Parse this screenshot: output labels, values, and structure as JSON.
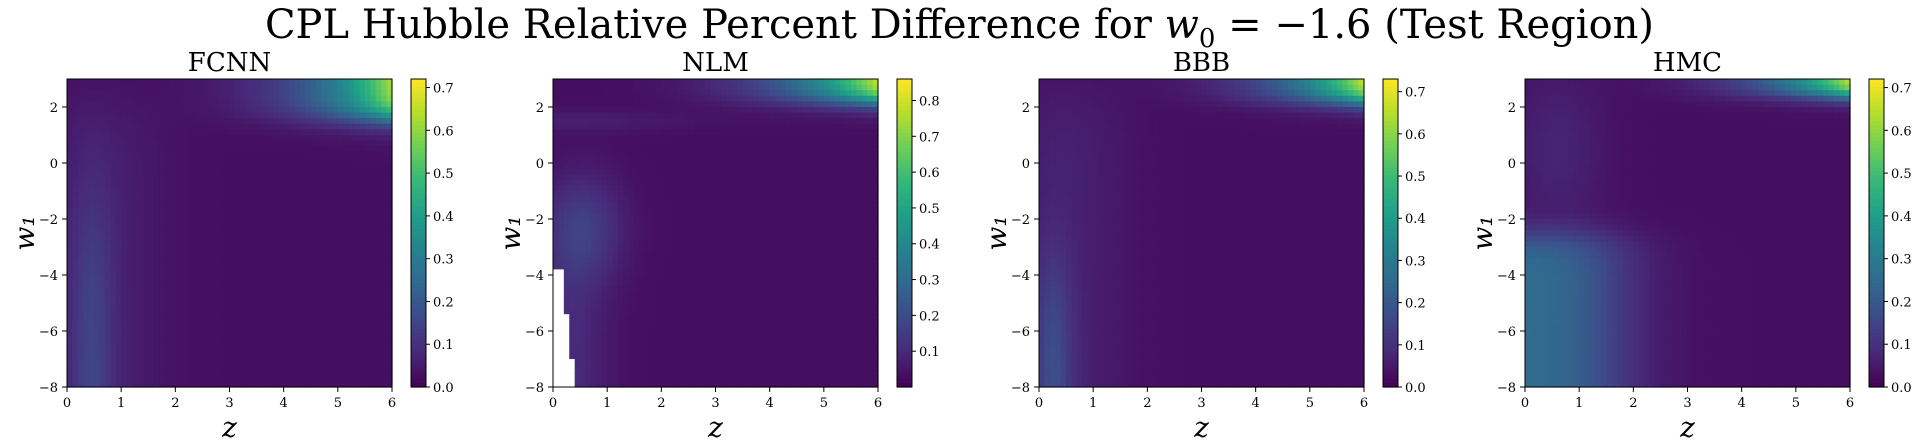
{
  "title": {
    "prefix": "CPL Hubble Relative Percent Difference for ",
    "math_var": "w",
    "math_sub": "0",
    "math_rest": " = −1.6",
    "suffix": " (Test Region)"
  },
  "chart_data": [
    {
      "type": "heatmap",
      "title": "FCNN",
      "xlabel": "z",
      "ylabel": "w₁",
      "xlim": [
        0,
        6
      ],
      "ylim": [
        -8,
        3
      ],
      "xticks": [
        0,
        1,
        2,
        3,
        4,
        5,
        6
      ],
      "yticks": [
        -8,
        -6,
        -4,
        -2,
        0,
        2
      ],
      "colorbar": {
        "vmin": 0.0,
        "vmax": 0.72,
        "ticks": [
          0.0,
          0.1,
          0.2,
          0.3,
          0.4,
          0.5,
          0.6,
          0.7
        ],
        "colormap": "viridis"
      }
    },
    {
      "type": "heatmap",
      "title": "NLM",
      "xlabel": "z",
      "ylabel": "w₁",
      "xlim": [
        0,
        6
      ],
      "ylim": [
        -8,
        3
      ],
      "xticks": [
        0,
        1,
        2,
        3,
        4,
        5,
        6
      ],
      "yticks": [
        -8,
        -6,
        -4,
        -2,
        0,
        2
      ],
      "colorbar": {
        "vmin": 0.0,
        "vmax": 0.86,
        "ticks": [
          0.1,
          0.2,
          0.3,
          0.4,
          0.5,
          0.6,
          0.7,
          0.8
        ],
        "colormap": "viridis"
      }
    },
    {
      "type": "heatmap",
      "title": "BBB",
      "xlabel": "z",
      "ylabel": "w₁",
      "xlim": [
        0,
        6
      ],
      "ylim": [
        -8,
        3
      ],
      "xticks": [
        0,
        1,
        2,
        3,
        4,
        5,
        6
      ],
      "yticks": [
        -8,
        -6,
        -4,
        -2,
        0,
        2
      ],
      "colorbar": {
        "vmin": 0.0,
        "vmax": 0.73,
        "ticks": [
          0.0,
          0.1,
          0.2,
          0.3,
          0.4,
          0.5,
          0.6,
          0.7
        ],
        "colormap": "viridis"
      }
    },
    {
      "type": "heatmap",
      "title": "HMC",
      "xlabel": "z",
      "ylabel": "w₁",
      "xlim": [
        0,
        6
      ],
      "ylim": [
        -8,
        3
      ],
      "xticks": [
        0,
        1,
        2,
        3,
        4,
        5,
        6
      ],
      "yticks": [
        -8,
        -6,
        -4,
        -2,
        0,
        2
      ],
      "colorbar": {
        "vmin": 0.0,
        "vmax": 0.72,
        "ticks": [
          0.0,
          0.1,
          0.2,
          0.3,
          0.4,
          0.5,
          0.6,
          0.7
        ],
        "colormap": "viridis"
      }
    }
  ],
  "colors": {
    "viridis_low": "#440154",
    "viridis_mid": "#21918c",
    "viridis_high": "#fde725"
  }
}
